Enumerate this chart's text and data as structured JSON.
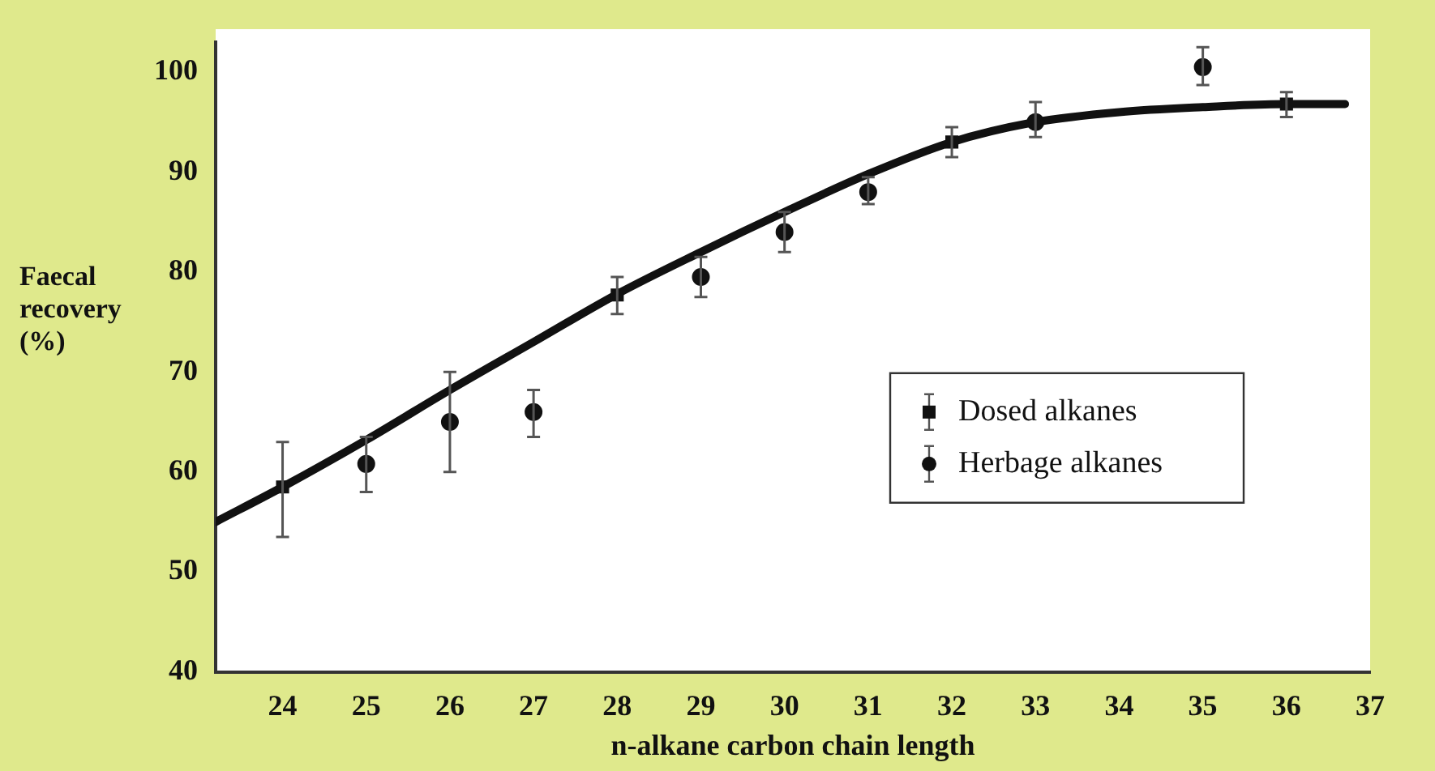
{
  "chart_data": {
    "type": "scatter",
    "xlabel": "n-alkane carbon chain length",
    "ylabel": "Faecal\nrecovery\n(%)",
    "xlim": [
      23.2,
      37
    ],
    "xticks": [
      24,
      25,
      26,
      27,
      28,
      29,
      30,
      31,
      32,
      33,
      34,
      35,
      36,
      37
    ],
    "ylim": [
      40,
      103
    ],
    "yticks": [
      40,
      50,
      60,
      70,
      80,
      90,
      100
    ],
    "grid": false,
    "legend": "right",
    "series": [
      {
        "type": "line",
        "color": "#111111",
        "marker": "none",
        "line_style": "solid",
        "x": [
          23.2,
          24,
          25,
          26,
          27,
          28,
          29,
          30,
          31,
          32,
          33,
          34,
          35,
          36,
          36.7
        ],
        "values": [
          55,
          58.5,
          63.2,
          68.2,
          73,
          77.8,
          82,
          86,
          89.8,
          93,
          95,
          96,
          96.5,
          96.8,
          96.8
        ]
      },
      {
        "name": "Dosed alkanes",
        "color": "#111111",
        "marker": "square",
        "x": [
          24,
          28,
          32,
          36
        ],
        "values": [
          58.5,
          77.7,
          93,
          96.8
        ],
        "errors": [
          [
            53.5,
            63
          ],
          [
            75.8,
            79.5
          ],
          [
            91.5,
            94.5
          ],
          [
            95.5,
            98
          ]
        ]
      },
      {
        "name": "Herbage alkanes",
        "color": "#111111",
        "marker": "circle",
        "x": [
          25,
          26,
          27,
          29,
          30,
          31,
          33,
          35
        ],
        "values": [
          60.8,
          65,
          66,
          79.5,
          84,
          88,
          95,
          100.5
        ],
        "errors": [
          [
            58,
            63.5
          ],
          [
            60,
            70
          ],
          [
            63.5,
            68.2
          ],
          [
            77.5,
            81.5
          ],
          [
            82,
            86
          ],
          [
            86.8,
            89.5
          ],
          [
            93.5,
            97
          ],
          [
            98.7,
            102.5
          ]
        ]
      }
    ]
  }
}
